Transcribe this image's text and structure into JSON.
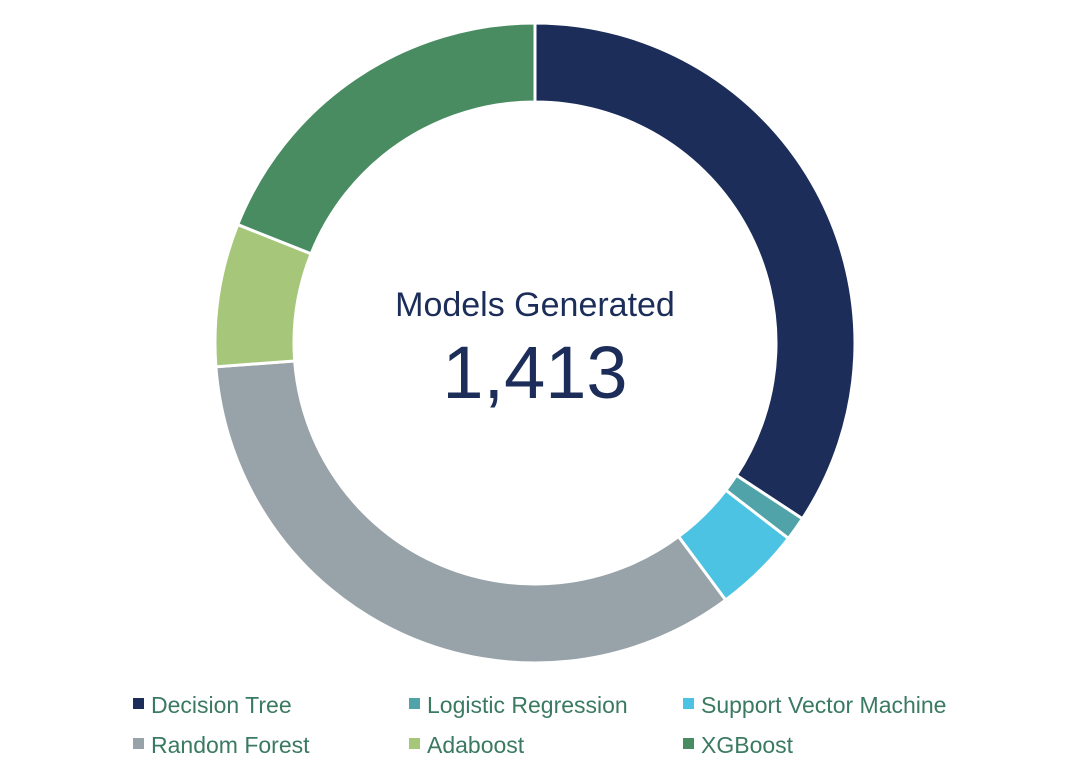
{
  "chart_data": {
    "type": "pie",
    "center_title": "Models Generated",
    "center_value": "1,413",
    "categories": [
      "Decision Tree",
      "Logistic Regression",
      "Support Vector Machine",
      "Random Forest",
      "Adaboost",
      "XGBoost"
    ],
    "values": [
      484,
      17,
      62,
      480,
      102,
      268
    ],
    "colors": [
      "#1b2d58",
      "#4fa3a9",
      "#4cc3e2",
      "#98a3a9",
      "#a6c67a",
      "#4a8c62"
    ],
    "legend": [
      "Decision Tree",
      "Logistic Regression",
      "Support Vector Machine",
      "Random Forest",
      "Adaboost",
      "XGBoost"
    ],
    "legend_position": "bottom"
  }
}
